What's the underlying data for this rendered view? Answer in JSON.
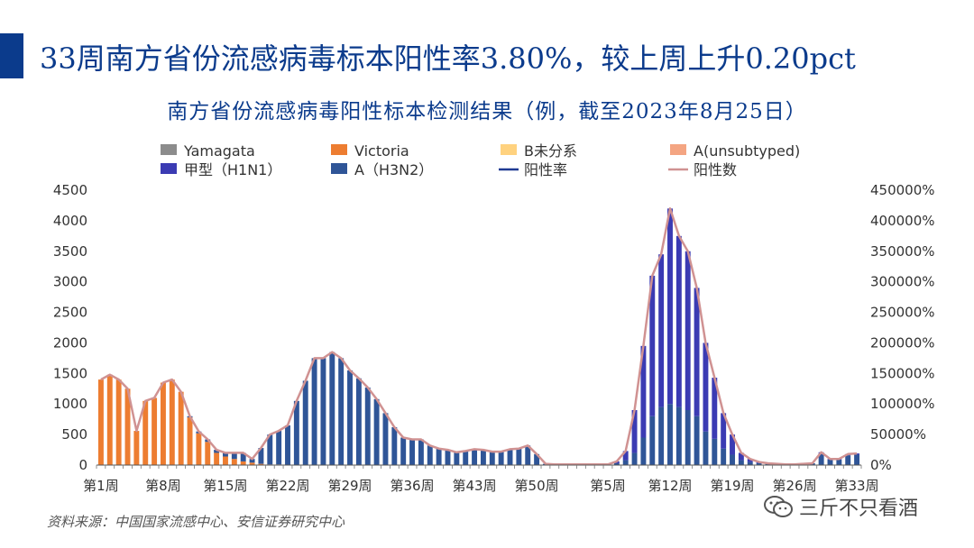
{
  "headline": "33周南方省份流感病毒标本阳性率3.80%，较上周上升0.20pct",
  "source": "资料来源：中国国家流感中心、安信证券研究中心",
  "watermark": "三斤不只看酒",
  "colors": {
    "accent": "#0b3b8c",
    "Yamagata": "#8c8c8c",
    "Victoria": "#ed7d31",
    "B_unlineaged": "#ffd27f",
    "A_unsubtyped": "#f4a582",
    "H1N1": "#3b3bb3",
    "H3N2": "#2f5597",
    "rate_line": "#1f3a93",
    "count_line": "#d09292"
  },
  "chart_data": {
    "type": "bar",
    "title": "南方省份流感病毒阳性标本检测结果（例，截至2023年8月25日）",
    "stacked": true,
    "legend_position": "top",
    "legend": [
      "Yamagata",
      "Victoria",
      "B未分系",
      "A(unsubtyped)",
      "甲型（H1N1）",
      "A（H3N2）",
      "阳性率",
      "阳性数"
    ],
    "x_tick_labels": [
      "第1周",
      "第8周",
      "第15周",
      "第22周",
      "第29周",
      "第36周",
      "第43周",
      "第50周",
      "第5周",
      "第12周",
      "第19周",
      "第26周",
      "第33周"
    ],
    "x_tick_indices": [
      0,
      7,
      14,
      21,
      28,
      35,
      42,
      49,
      57,
      64,
      71,
      78,
      85
    ],
    "y_left": {
      "range": [
        0,
        4500
      ],
      "ticks": [
        0,
        500,
        1000,
        1500,
        2000,
        2500,
        3000,
        3500,
        4000,
        4500
      ]
    },
    "y_right": {
      "range": [
        0,
        450000
      ],
      "ticks": [
        "0%",
        "50000%",
        "100000%",
        "150000%",
        "200000%",
        "250000%",
        "300000%",
        "350000%",
        "400000%",
        "450000%"
      ]
    },
    "totals": [
      1400,
      1480,
      1400,
      1250,
      560,
      1050,
      1100,
      1350,
      1400,
      1200,
      800,
      550,
      420,
      250,
      200,
      200,
      200,
      100,
      280,
      500,
      560,
      650,
      1050,
      1380,
      1750,
      1750,
      1850,
      1750,
      1550,
      1420,
      1270,
      1080,
      850,
      620,
      450,
      420,
      420,
      320,
      270,
      250,
      210,
      230,
      260,
      250,
      220,
      220,
      260,
      270,
      320,
      180,
      20,
      10,
      10,
      10,
      10,
      10,
      10,
      10,
      60,
      230,
      900,
      1950,
      3100,
      3450,
      4200,
      3750,
      3500,
      2900,
      2000,
      1430,
      850,
      500,
      200,
      100,
      50,
      30,
      20,
      10,
      10,
      20,
      30,
      210,
      100,
      100,
      180,
      190
    ],
    "count_line": [
      1400,
      1480,
      1400,
      1250,
      560,
      1050,
      1100,
      1350,
      1400,
      1200,
      800,
      550,
      420,
      250,
      200,
      200,
      200,
      100,
      280,
      500,
      560,
      650,
      1050,
      1380,
      1750,
      1750,
      1850,
      1750,
      1550,
      1420,
      1270,
      1080,
      850,
      620,
      450,
      420,
      420,
      320,
      270,
      250,
      210,
      230,
      260,
      250,
      220,
      220,
      260,
      270,
      320,
      180,
      20,
      10,
      10,
      10,
      10,
      10,
      10,
      10,
      60,
      230,
      900,
      1950,
      3100,
      3450,
      4200,
      3750,
      3500,
      2900,
      2000,
      1430,
      850,
      500,
      200,
      100,
      50,
      30,
      20,
      10,
      10,
      20,
      30,
      210,
      100,
      100,
      180,
      190
    ],
    "victoria": [
      1400,
      1480,
      1400,
      1250,
      560,
      1050,
      1100,
      1350,
      1400,
      1200,
      780,
      520,
      380,
      200,
      140,
      100,
      60,
      40,
      20,
      10,
      10,
      0,
      0,
      0,
      0,
      0,
      0,
      0,
      0,
      0,
      0,
      0,
      0,
      0,
      0,
      0,
      0,
      0,
      0,
      0,
      0,
      0,
      0,
      0,
      0,
      0,
      0,
      0,
      0,
      0,
      0,
      0,
      0,
      0,
      0,
      0,
      0,
      0,
      0,
      0,
      0,
      0,
      0,
      0,
      0,
      0,
      0,
      0,
      0,
      0,
      0,
      0,
      0,
      0,
      0,
      0,
      0,
      0,
      0,
      0,
      0,
      0,
      0,
      0,
      0,
      0
    ],
    "h1n1": [
      0,
      0,
      0,
      0,
      0,
      0,
      0,
      0,
      0,
      0,
      0,
      0,
      0,
      0,
      0,
      0,
      0,
      0,
      0,
      0,
      0,
      0,
      0,
      0,
      0,
      0,
      0,
      0,
      0,
      0,
      0,
      0,
      0,
      0,
      0,
      0,
      0,
      0,
      0,
      0,
      0,
      0,
      0,
      0,
      0,
      0,
      0,
      0,
      0,
      0,
      0,
      0,
      0,
      0,
      0,
      0,
      0,
      0,
      30,
      150,
      700,
      1500,
      2300,
      2500,
      3200,
      2800,
      2600,
      2100,
      1450,
      1000,
      580,
      330,
      120,
      50,
      20,
      10,
      5,
      0,
      0,
      0,
      0,
      30,
      10,
      10,
      20,
      20
    ]
  }
}
